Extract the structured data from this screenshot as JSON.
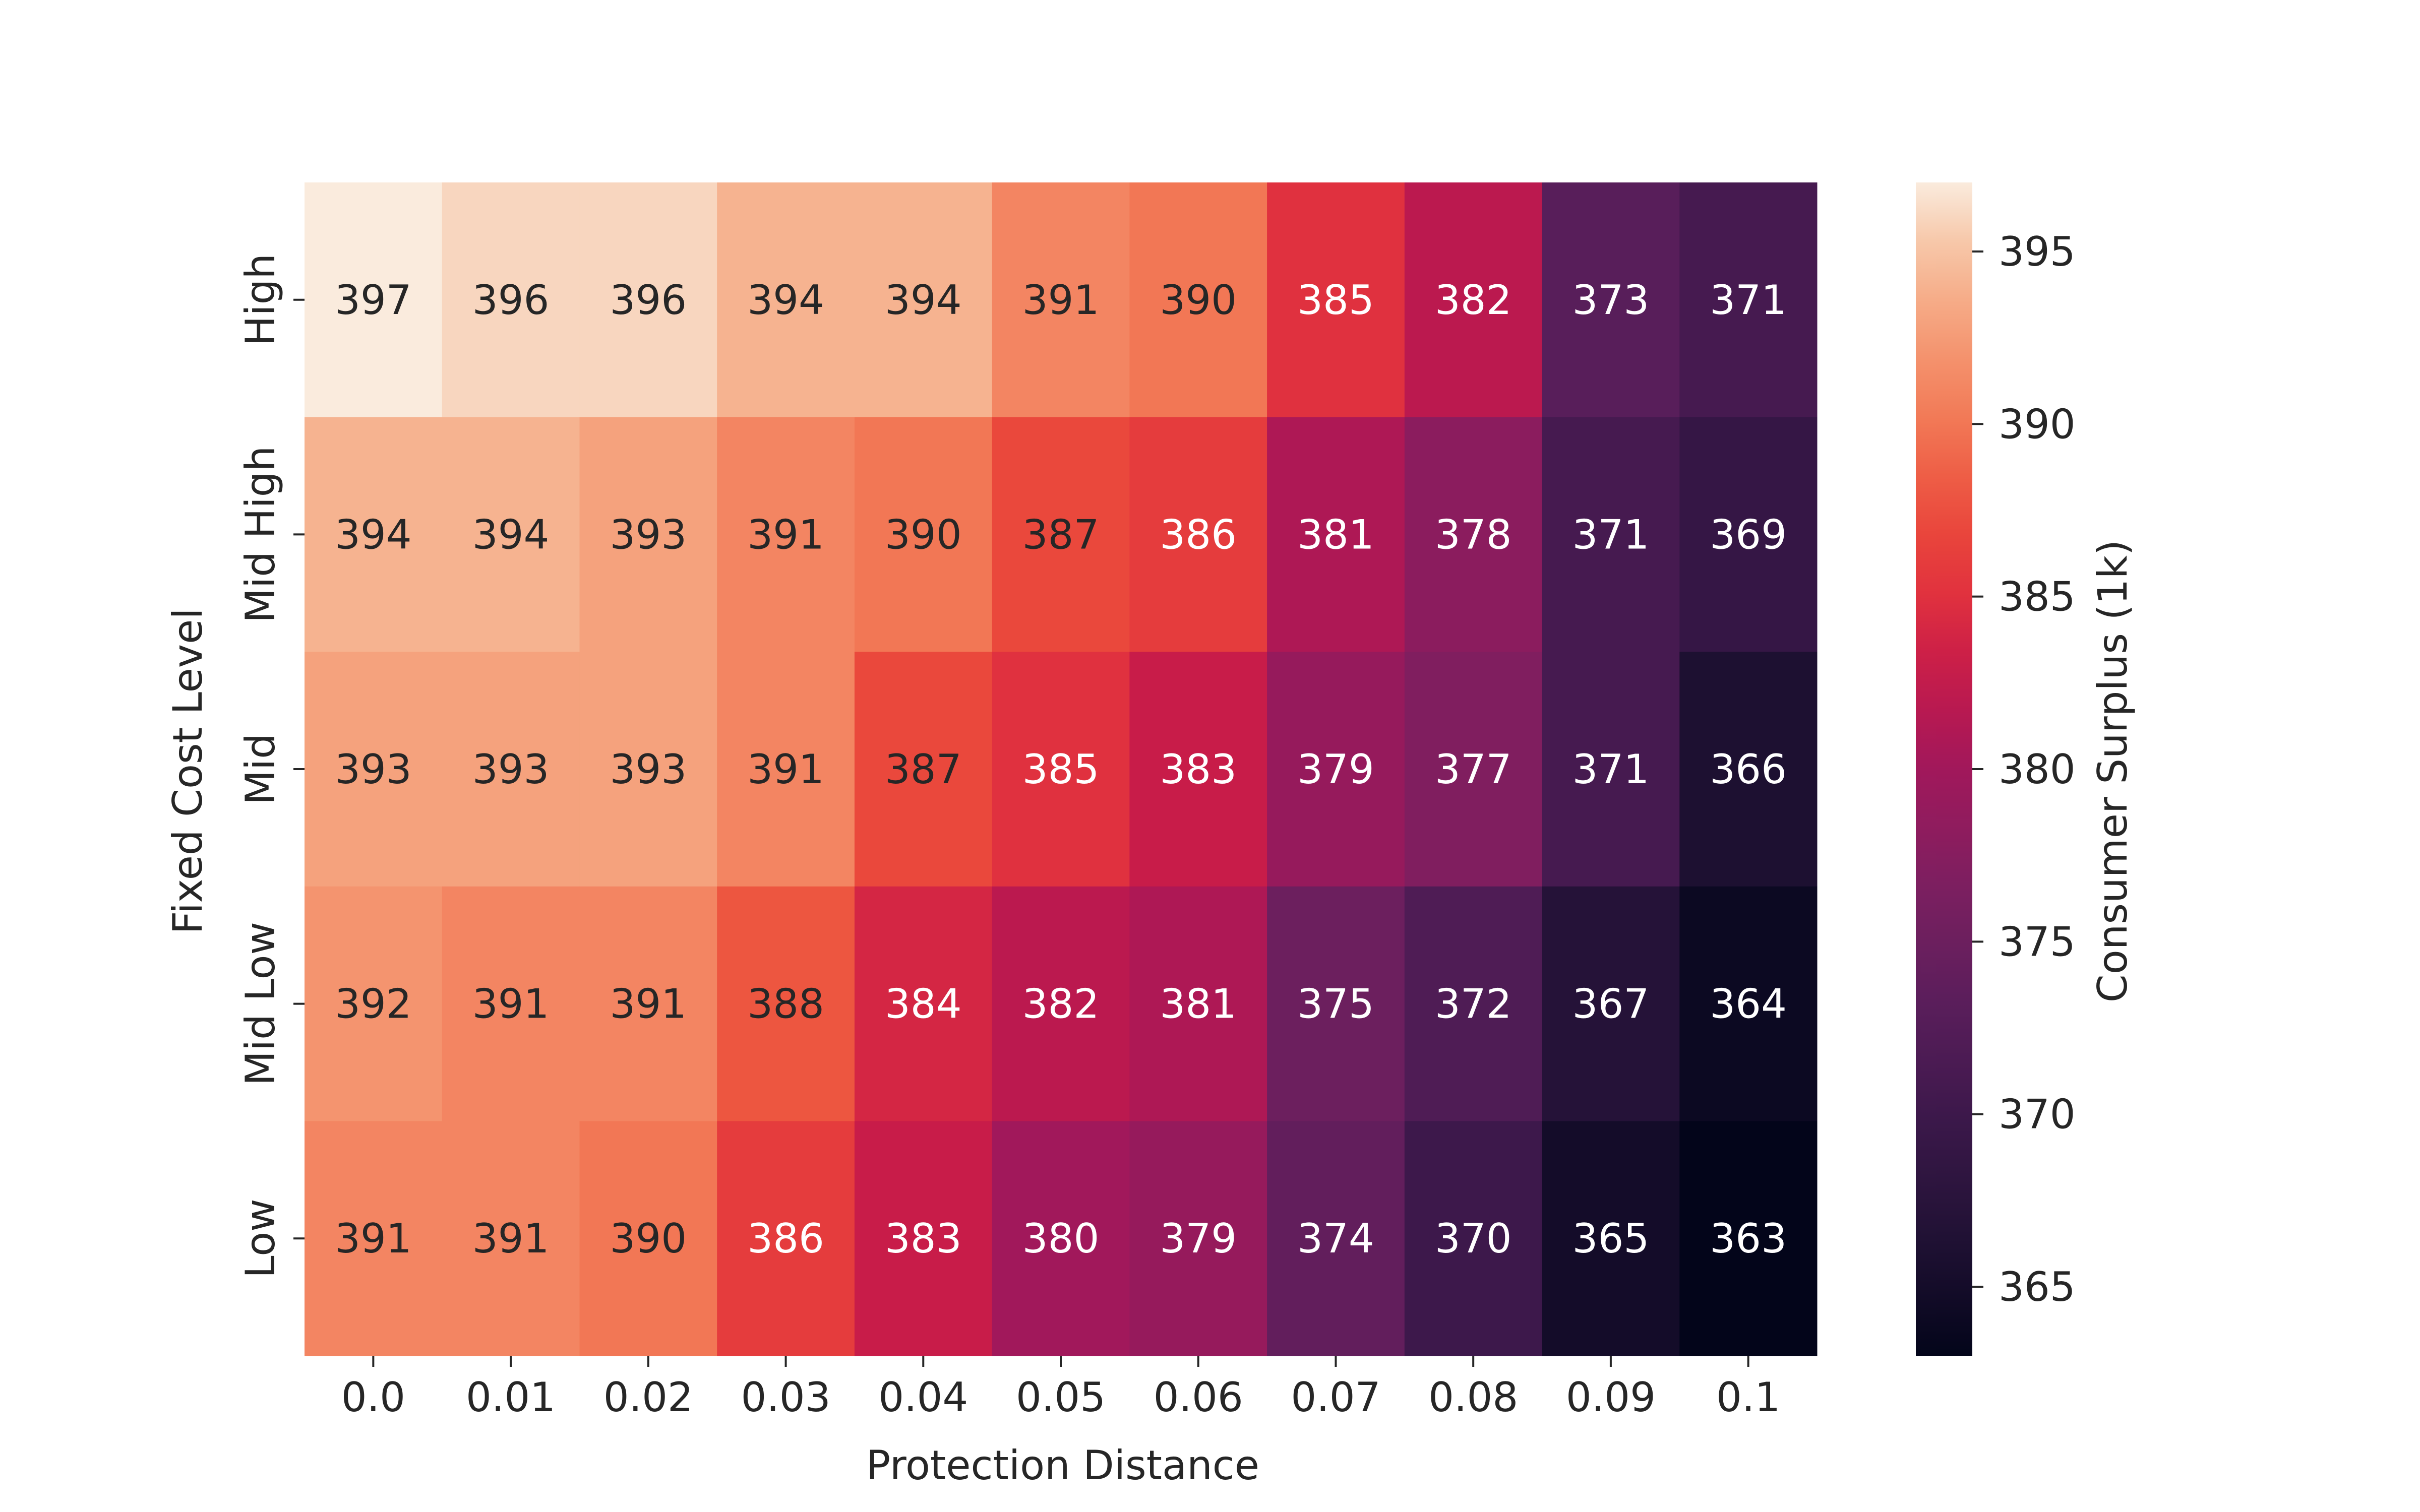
{
  "chart_data": {
    "type": "heatmap",
    "title": "",
    "xlabel": "Protection Distance",
    "ylabel": "Fixed Cost Level",
    "x_categories": [
      "0.0",
      "0.01",
      "0.02",
      "0.03",
      "0.04",
      "0.05",
      "0.06",
      "0.07",
      "0.08",
      "0.09",
      "0.1"
    ],
    "y_categories": [
      "High",
      "Mid High",
      "Mid",
      "Mid Low",
      "Low"
    ],
    "values": [
      [
        397,
        396,
        396,
        394,
        394,
        391,
        390,
        385,
        382,
        373,
        371
      ],
      [
        394,
        394,
        393,
        391,
        390,
        387,
        386,
        381,
        378,
        371,
        369
      ],
      [
        393,
        393,
        393,
        391,
        387,
        385,
        383,
        379,
        377,
        371,
        366
      ],
      [
        392,
        391,
        391,
        388,
        384,
        382,
        381,
        375,
        372,
        367,
        364
      ],
      [
        391,
        391,
        390,
        386,
        383,
        380,
        379,
        374,
        370,
        365,
        363
      ]
    ],
    "colorbar": {
      "label": "Consumer Surplus (1k)",
      "ticks": [
        "365",
        "370",
        "375",
        "380",
        "385",
        "390",
        "395"
      ],
      "min": 363,
      "max": 397,
      "colormap": "rocket"
    },
    "annotation_colors": {
      "light_cell_text": "#262626",
      "dark_cell_text": "#ffffff"
    },
    "grid": false
  }
}
